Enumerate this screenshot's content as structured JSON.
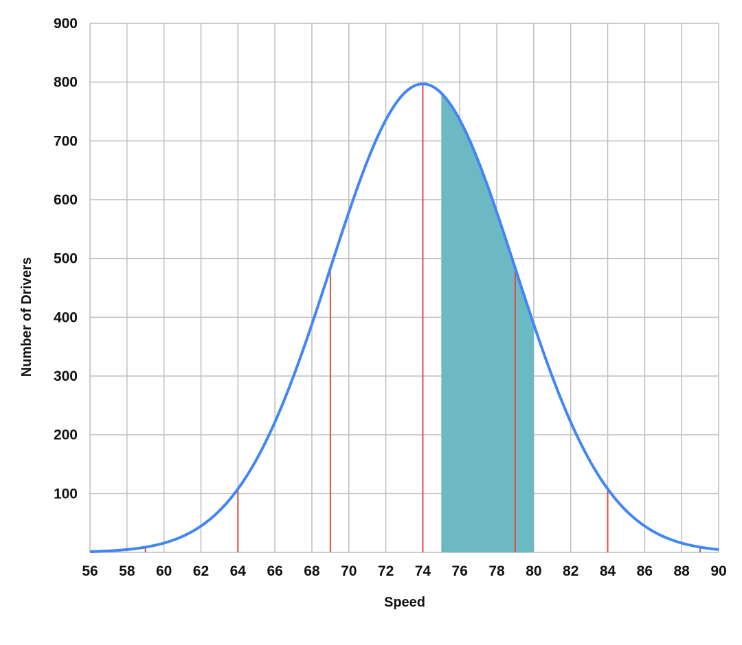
{
  "chart_data": {
    "type": "area",
    "title": "",
    "xlabel": "Speed",
    "ylabel": "Number of Drivers",
    "xlim": [
      56,
      90
    ],
    "ylim": [
      0,
      900
    ],
    "xticks": [
      "56",
      "58",
      "60",
      "62",
      "64",
      "66",
      "68",
      "70",
      "72",
      "74",
      "76",
      "78",
      "80",
      "82",
      "84",
      "86",
      "88",
      "90"
    ],
    "yticks": [
      "100",
      "200",
      "300",
      "400",
      "500",
      "600",
      "700",
      "800",
      "900"
    ],
    "grid": true,
    "distribution": {
      "mean": 74,
      "sd": 5
    },
    "x": [
      56,
      57,
      58,
      59,
      60,
      61,
      62,
      63,
      64,
      65,
      66,
      67,
      68,
      69,
      70,
      71,
      72,
      73,
      74,
      75,
      76,
      77,
      78,
      79,
      80,
      81,
      82,
      83,
      84,
      85,
      86,
      87,
      88,
      89,
      90
    ],
    "y": [
      1,
      2,
      5,
      9,
      16,
      27,
      45,
      71,
      108,
      158,
      222,
      299,
      388,
      483,
      579,
      666,
      736,
      781,
      797,
      781,
      736,
      666,
      579,
      483,
      388,
      299,
      222,
      158,
      108,
      71,
      45,
      27,
      16,
      9,
      5
    ],
    "shaded_range": [
      75,
      80
    ],
    "marker_lines_x": [
      59,
      64,
      69,
      74,
      79,
      84,
      89
    ],
    "colors": {
      "curve": "#4285f4",
      "shade": "#6cb8c3",
      "marker": "#e5483c",
      "grid": "#bdbdbd"
    }
  }
}
